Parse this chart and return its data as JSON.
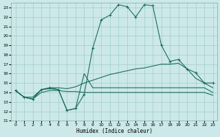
{
  "bg_color": "#cce8e8",
  "grid_color": "#a0cccc",
  "line_color": "#1a6b5a",
  "xlabel": "Humidex (Indice chaleur)",
  "xlim": [
    -0.5,
    23.5
  ],
  "ylim": [
    11,
    23.5
  ],
  "yticks": [
    11,
    12,
    13,
    14,
    15,
    16,
    17,
    18,
    19,
    20,
    21,
    22,
    23
  ],
  "xticks": [
    0,
    1,
    2,
    3,
    4,
    5,
    6,
    7,
    8,
    9,
    10,
    11,
    12,
    13,
    14,
    15,
    16,
    17,
    18,
    19,
    20,
    21,
    22,
    23
  ],
  "curve_main": {
    "x": [
      0,
      1,
      2,
      3,
      4,
      5,
      6,
      7,
      8,
      9,
      10,
      11,
      12,
      13,
      14,
      15,
      16,
      17,
      18,
      19,
      20,
      21,
      22,
      23
    ],
    "y": [
      14.2,
      13.5,
      13.3,
      14.3,
      14.5,
      14.3,
      12.1,
      12.3,
      13.8,
      18.7,
      21.7,
      22.2,
      23.3,
      23.1,
      22.0,
      23.3,
      23.2,
      19.0,
      17.3,
      17.5,
      16.5,
      16.1,
      15.0,
      15.0
    ]
  },
  "curve_dip": {
    "x": [
      0,
      1,
      2,
      3,
      4,
      5,
      6,
      7,
      8,
      9,
      10,
      11,
      12,
      13,
      14,
      15,
      16,
      17,
      18,
      19,
      20,
      21,
      22,
      23
    ],
    "y": [
      14.2,
      13.5,
      13.3,
      14.3,
      14.4,
      14.3,
      12.1,
      12.3,
      16.0,
      14.5,
      14.5,
      14.5,
      14.5,
      14.5,
      14.5,
      14.5,
      14.5,
      14.5,
      14.5,
      14.5,
      14.5,
      14.5,
      14.5,
      14.0
    ]
  },
  "curve_rising": {
    "x": [
      0,
      1,
      2,
      3,
      4,
      5,
      6,
      7,
      8,
      9,
      10,
      11,
      12,
      13,
      14,
      15,
      16,
      17,
      18,
      19,
      20,
      21,
      22,
      23
    ],
    "y": [
      14.2,
      13.5,
      13.5,
      14.3,
      14.5,
      14.5,
      14.4,
      14.6,
      15.0,
      15.3,
      15.6,
      15.9,
      16.1,
      16.3,
      16.5,
      16.6,
      16.8,
      17.0,
      17.0,
      17.1,
      16.5,
      15.5,
      15.0,
      14.5
    ]
  },
  "curve_flat": {
    "x": [
      0,
      1,
      2,
      3,
      4,
      5,
      6,
      7,
      8,
      9,
      10,
      11,
      12,
      13,
      14,
      15,
      16,
      17,
      18,
      19,
      20,
      21,
      22,
      23
    ],
    "y": [
      14.2,
      13.5,
      13.3,
      14.0,
      14.2,
      14.2,
      14.1,
      14.1,
      14.0,
      14.0,
      14.0,
      14.0,
      14.0,
      14.0,
      14.0,
      14.0,
      14.0,
      14.0,
      14.0,
      14.0,
      14.0,
      14.0,
      14.0,
      13.7
    ]
  }
}
